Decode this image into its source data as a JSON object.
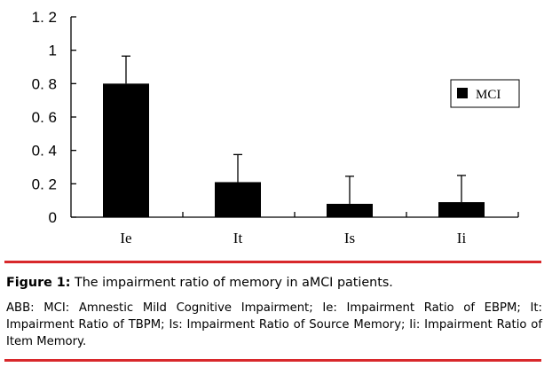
{
  "chart_data": {
    "type": "bar",
    "title": "",
    "xlabel": "",
    "ylabel": "",
    "categories": [
      "Ie",
      "It",
      "Is",
      "Ii"
    ],
    "series": [
      {
        "name": "MCI",
        "values": [
          0.8,
          0.21,
          0.08,
          0.09
        ],
        "error_plus": [
          0.165,
          0.165,
          0.165,
          0.16
        ],
        "color": "#000000"
      }
    ],
    "ylim": [
      0,
      1.2
    ],
    "y_ticks": [
      0,
      0.2,
      0.4,
      0.6,
      0.8,
      1,
      1.2
    ],
    "y_tick_labels": [
      "0",
      "0. 2",
      "0. 4",
      "0. 6",
      "0. 8",
      "1",
      "1. 2"
    ],
    "grid": false,
    "legend_position": "right"
  },
  "caption": {
    "figure_label": "Figure 1:",
    "figure_title": " The impairment ratio of memory in aMCI patients.",
    "note": "ABB: MCI: Amnestic Mild Cognitive Impairment; Ie: Impairment Ratio of EBPM; It: Impairment Ratio of TBPM; Is: Impairment Ratio of Source Memory; Ii: Impairment Ratio of Item Memory."
  },
  "colors": {
    "rule": "#d8282b",
    "bar": "#000000"
  }
}
